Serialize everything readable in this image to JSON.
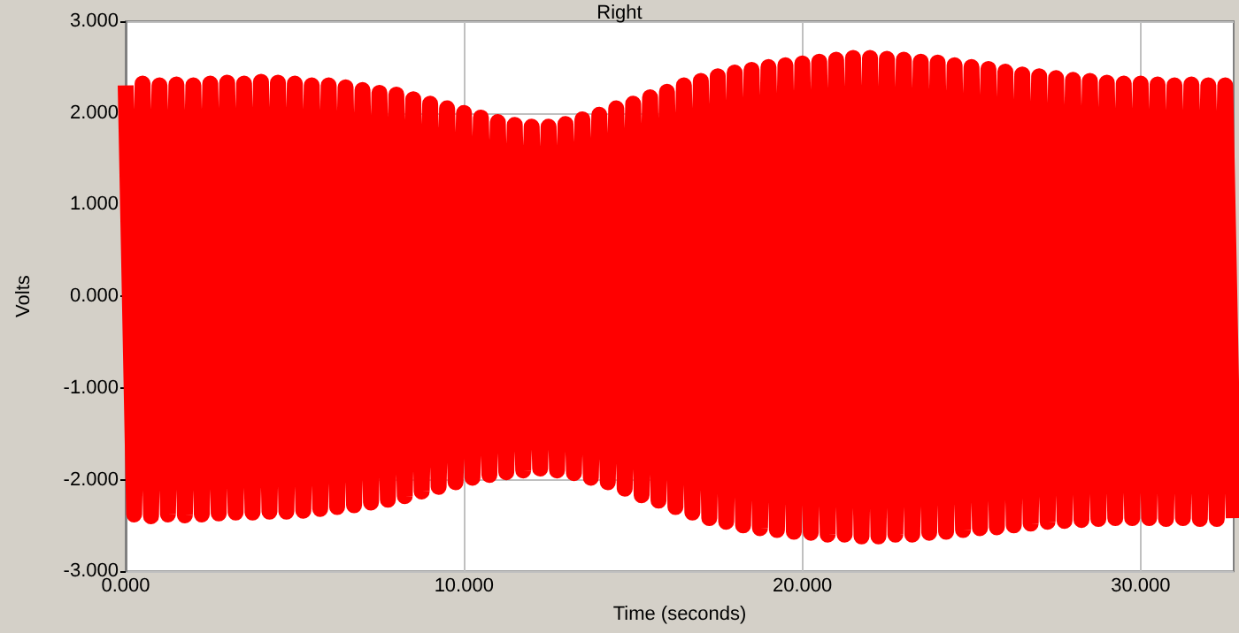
{
  "chart_data": {
    "type": "line",
    "title": "Right",
    "xlabel": "Time (seconds)",
    "ylabel": "Volts",
    "xlim": [
      0,
      32.75
    ],
    "xticks": [
      {
        "value": 0,
        "label": "0.000"
      },
      {
        "value": 10,
        "label": "10.000"
      },
      {
        "value": 20,
        "label": "20.000"
      },
      {
        "value": 30,
        "label": "30.000"
      }
    ],
    "ylim": [
      -3,
      3
    ],
    "yticks": [
      {
        "value": -3,
        "label": "-3.000"
      },
      {
        "value": -2,
        "label": "-2.000"
      },
      {
        "value": -1,
        "label": "-1.000"
      },
      {
        "value": 0,
        "label": "0.000"
      },
      {
        "value": 1,
        "label": "1.000"
      },
      {
        "value": 2,
        "label": "2.000"
      },
      {
        "value": 3,
        "label": "3.000"
      }
    ],
    "grid": true,
    "marker": "none",
    "line_style": "solid",
    "series": [
      {
        "color": "#ff0000",
        "x": [
          0,
          0.25,
          0.5,
          0.75,
          1,
          1.25,
          1.5,
          1.75,
          2,
          2.25,
          2.5,
          2.75,
          3,
          3.25,
          3.5,
          3.75,
          4,
          4.25,
          4.5,
          4.75,
          5,
          5.25,
          5.5,
          5.75,
          6,
          6.25,
          6.5,
          6.75,
          7,
          7.25,
          7.5,
          7.75,
          8,
          8.25,
          8.5,
          8.75,
          9,
          9.25,
          9.5,
          9.75,
          10,
          10.25,
          10.5,
          10.75,
          11,
          11.25,
          11.5,
          11.75,
          12,
          12.25,
          12.5,
          12.75,
          13,
          13.25,
          13.5,
          13.75,
          14,
          14.25,
          14.5,
          14.75,
          15,
          15.25,
          15.5,
          15.75,
          16,
          16.25,
          16.5,
          16.75,
          17,
          17.25,
          17.5,
          17.75,
          18,
          18.25,
          18.5,
          18.75,
          19,
          19.25,
          19.5,
          19.75,
          20,
          20.25,
          20.5,
          20.75,
          21,
          21.25,
          21.5,
          21.75,
          22,
          22.25,
          22.5,
          22.75,
          23,
          23.25,
          23.5,
          23.75,
          24,
          24.25,
          24.5,
          24.75,
          25,
          25.25,
          25.5,
          25.75,
          26,
          26.25,
          26.5,
          26.75,
          27,
          27.25,
          27.5,
          27.75,
          28,
          28.25,
          28.5,
          28.75,
          29,
          29.25,
          29.5,
          29.75,
          30,
          30.25,
          30.5,
          30.75,
          31,
          31.25,
          31.5,
          31.75,
          32,
          32.25,
          32.5,
          32.75
        ],
        "values": [
          2.3,
          -2.38,
          2.32,
          -2.4,
          2.3,
          -2.38,
          2.31,
          -2.39,
          2.3,
          -2.38,
          2.32,
          -2.37,
          2.33,
          -2.36,
          2.32,
          -2.36,
          2.34,
          -2.35,
          2.33,
          -2.35,
          2.32,
          -2.34,
          2.3,
          -2.32,
          2.3,
          -2.3,
          2.28,
          -2.28,
          2.25,
          -2.25,
          2.22,
          -2.22,
          2.2,
          -2.18,
          2.15,
          -2.13,
          2.1,
          -2.08,
          2.05,
          -2.03,
          2.0,
          -1.98,
          1.95,
          -1.95,
          1.9,
          -1.92,
          1.87,
          -1.9,
          1.85,
          -1.88,
          1.85,
          -1.9,
          1.88,
          -1.93,
          1.93,
          -1.98,
          1.98,
          -2.03,
          2.05,
          -2.1,
          2.1,
          -2.17,
          2.17,
          -2.23,
          2.23,
          -2.3,
          2.3,
          -2.36,
          2.35,
          -2.42,
          2.4,
          -2.46,
          2.44,
          -2.5,
          2.47,
          -2.53,
          2.5,
          -2.55,
          2.52,
          -2.57,
          2.54,
          -2.58,
          2.56,
          -2.6,
          2.58,
          -2.6,
          2.6,
          -2.62,
          2.6,
          -2.62,
          2.59,
          -2.6,
          2.58,
          -2.6,
          2.56,
          -2.58,
          2.55,
          -2.57,
          2.52,
          -2.55,
          2.5,
          -2.53,
          2.48,
          -2.52,
          2.45,
          -2.5,
          2.42,
          -2.48,
          2.4,
          -2.46,
          2.38,
          -2.45,
          2.36,
          -2.44,
          2.35,
          -2.43,
          2.33,
          -2.42,
          2.32,
          -2.42,
          2.32,
          -2.42,
          2.31,
          -2.43,
          2.3,
          -2.42,
          2.31,
          -2.43,
          2.3,
          -2.43,
          2.3,
          -2.42
        ]
      }
    ]
  }
}
